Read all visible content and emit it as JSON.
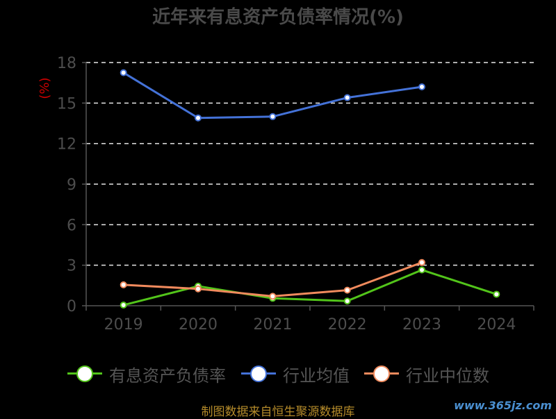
{
  "chart_data": {
    "type": "line",
    "title": "近年来有息资产负债率情况(%)",
    "ylabel": "(%)",
    "categories": [
      "2019",
      "2020",
      "2021",
      "2022",
      "2023",
      "2024"
    ],
    "ylim": [
      0,
      18
    ],
    "yticks": [
      0,
      3,
      6,
      9,
      12,
      15,
      18
    ],
    "grid": true,
    "legend_position": "bottom",
    "series": [
      {
        "name": "有息资产负债率",
        "color": "#52c41a",
        "values": [
          0.05,
          1.45,
          0.55,
          0.35,
          2.65,
          0.85
        ]
      },
      {
        "name": "行业均值",
        "color": "#4472d8",
        "values": [
          17.25,
          13.9,
          14.0,
          15.4,
          16.2,
          null
        ]
      },
      {
        "name": "行业中位数",
        "color": "#f08a5d",
        "values": [
          1.55,
          1.25,
          0.7,
          1.15,
          3.2,
          null
        ]
      }
    ]
  },
  "footer": {
    "source": "制图数据来自恒生聚源数据库"
  },
  "watermark": "www.365jz.com"
}
